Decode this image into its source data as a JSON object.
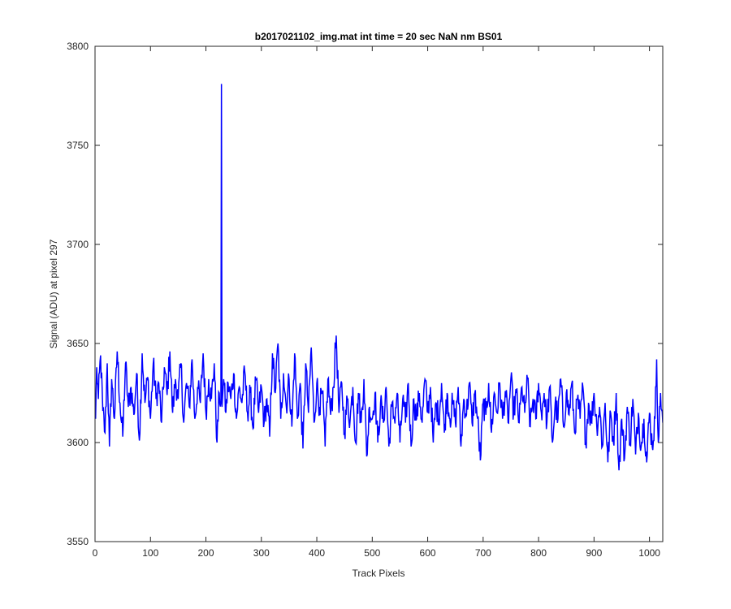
{
  "chart_data": {
    "type": "line",
    "title": "b2017021102_img.mat int time = 20 sec  NaN nm BS01",
    "xlabel": "Track Pixels",
    "ylabel": "Signal (ADU) at pixel 297",
    "xlim": [
      0,
      1024
    ],
    "ylim": [
      3550,
      3800
    ],
    "x_ticks": [
      0,
      100,
      200,
      300,
      400,
      500,
      600,
      700,
      800,
      900,
      1000
    ],
    "y_ticks": [
      3550,
      3600,
      3650,
      3700,
      3750,
      3800
    ],
    "x_tick_labels": [
      "0",
      "100",
      "200",
      "300",
      "400",
      "500",
      "600",
      "700",
      "800",
      "900",
      "1000"
    ],
    "y_tick_labels": [
      "3550",
      "3600",
      "3650",
      "3700",
      "3750",
      "3800"
    ],
    "grid": false,
    "series": [
      {
        "color": "#0000ff",
        "x_start": 1,
        "x_step": 1,
        "anchors": [
          [
            1,
            3612
          ],
          [
            3,
            3638
          ],
          [
            6,
            3622
          ],
          [
            10,
            3644
          ],
          [
            14,
            3616
          ],
          [
            18,
            3605
          ],
          [
            22,
            3640
          ],
          [
            26,
            3598
          ],
          [
            30,
            3632
          ],
          [
            35,
            3612
          ],
          [
            40,
            3646
          ],
          [
            45,
            3620
          ],
          [
            50,
            3603
          ],
          [
            55,
            3640
          ],
          [
            60,
            3618
          ],
          [
            65,
            3628
          ],
          [
            70,
            3614
          ],
          [
            75,
            3635
          ],
          [
            80,
            3601
          ],
          [
            85,
            3645
          ],
          [
            90,
            3620
          ],
          [
            95,
            3633
          ],
          [
            100,
            3612
          ],
          [
            105,
            3640
          ],
          [
            110,
            3622
          ],
          [
            115,
            3630
          ],
          [
            120,
            3610
          ],
          [
            125,
            3638
          ],
          [
            130,
            3624
          ],
          [
            135,
            3646
          ],
          [
            140,
            3615
          ],
          [
            145,
            3632
          ],
          [
            150,
            3622
          ],
          [
            155,
            3640
          ],
          [
            160,
            3610
          ],
          [
            165,
            3630
          ],
          [
            170,
            3618
          ],
          [
            175,
            3642
          ],
          [
            180,
            3612
          ],
          [
            185,
            3628
          ],
          [
            190,
            3620
          ],
          [
            195,
            3645
          ],
          [
            200,
            3615
          ],
          [
            205,
            3632
          ],
          [
            210,
            3622
          ],
          [
            215,
            3640
          ],
          [
            220,
            3600
          ],
          [
            224,
            3625
          ],
          [
            227,
            3620
          ],
          [
            228,
            3781
          ],
          [
            229,
            3618
          ],
          [
            232,
            3632
          ],
          [
            236,
            3615
          ],
          [
            240,
            3630
          ],
          [
            245,
            3622
          ],
          [
            250,
            3635
          ],
          [
            255,
            3612
          ],
          [
            260,
            3628
          ],
          [
            265,
            3620
          ],
          [
            270,
            3636
          ],
          [
            275,
            3615
          ],
          [
            280,
            3625
          ],
          [
            285,
            3607
          ],
          [
            290,
            3632
          ],
          [
            295,
            3615
          ],
          [
            300,
            3628
          ],
          [
            305,
            3610
          ],
          [
            310,
            3622
          ],
          [
            315,
            3603
          ],
          [
            320,
            3645
          ],
          [
            325,
            3625
          ],
          [
            330,
            3650
          ],
          [
            335,
            3612
          ],
          [
            340,
            3635
          ],
          [
            345,
            3618
          ],
          [
            350,
            3632
          ],
          [
            355,
            3608
          ],
          [
            360,
            3645
          ],
          [
            365,
            3612
          ],
          [
            370,
            3630
          ],
          [
            375,
            3597
          ],
          [
            380,
            3640
          ],
          [
            385,
            3615
          ],
          [
            390,
            3648
          ],
          [
            395,
            3610
          ],
          [
            400,
            3630
          ],
          [
            405,
            3618
          ],
          [
            410,
            3625
          ],
          [
            415,
            3598
          ],
          [
            420,
            3632
          ],
          [
            425,
            3614
          ],
          [
            430,
            3628
          ],
          [
            435,
            3654
          ],
          [
            440,
            3615
          ],
          [
            445,
            3630
          ],
          [
            450,
            3605
          ],
          [
            455,
            3622
          ],
          [
            460,
            3611
          ],
          [
            465,
            3628
          ],
          [
            470,
            3600
          ],
          [
            475,
            3625
          ],
          [
            480,
            3610
          ],
          [
            485,
            3632
          ],
          [
            490,
            3593
          ],
          [
            495,
            3618
          ],
          [
            500,
            3612
          ],
          [
            505,
            3625
          ],
          [
            510,
            3600
          ],
          [
            515,
            3620
          ],
          [
            520,
            3610
          ],
          [
            525,
            3628
          ],
          [
            530,
            3598
          ],
          [
            535,
            3618
          ],
          [
            540,
            3612
          ],
          [
            545,
            3625
          ],
          [
            550,
            3600
          ],
          [
            555,
            3622
          ],
          [
            560,
            3610
          ],
          [
            565,
            3630
          ],
          [
            570,
            3598
          ],
          [
            575,
            3622
          ],
          [
            580,
            3612
          ],
          [
            585,
            3625
          ],
          [
            590,
            3610
          ],
          [
            595,
            3632
          ],
          [
            600,
            3615
          ],
          [
            605,
            3628
          ],
          [
            610,
            3600
          ],
          [
            615,
            3620
          ],
          [
            620,
            3612
          ],
          [
            625,
            3630
          ],
          [
            630,
            3605
          ],
          [
            635,
            3625
          ],
          [
            640,
            3612
          ],
          [
            645,
            3620
          ],
          [
            650,
            3610
          ],
          [
            655,
            3628
          ],
          [
            660,
            3598
          ],
          [
            665,
            3622
          ],
          [
            670,
            3614
          ],
          [
            675,
            3630
          ],
          [
            680,
            3610
          ],
          [
            685,
            3625
          ],
          [
            690,
            3612
          ],
          [
            695,
            3591
          ],
          [
            700,
            3620
          ],
          [
            705,
            3614
          ],
          [
            710,
            3630
          ],
          [
            715,
            3605
          ],
          [
            720,
            3625
          ],
          [
            725,
            3615
          ],
          [
            730,
            3630
          ],
          [
            735,
            3612
          ],
          [
            740,
            3626
          ],
          [
            745,
            3610
          ],
          [
            750,
            3632
          ],
          [
            755,
            3615
          ],
          [
            760,
            3625
          ],
          [
            765,
            3610
          ],
          [
            770,
            3628
          ],
          [
            775,
            3615
          ],
          [
            780,
            3632
          ],
          [
            785,
            3608
          ],
          [
            790,
            3622
          ],
          [
            795,
            3612
          ],
          [
            800,
            3630
          ],
          [
            805,
            3615
          ],
          [
            810,
            3625
          ],
          [
            815,
            3610
          ],
          [
            820,
            3628
          ],
          [
            825,
            3600
          ],
          [
            830,
            3620
          ],
          [
            835,
            3612
          ],
          [
            840,
            3632
          ],
          [
            845,
            3608
          ],
          [
            850,
            3625
          ],
          [
            855,
            3614
          ],
          [
            860,
            3630
          ],
          [
            865,
            3605
          ],
          [
            870,
            3622
          ],
          [
            875,
            3612
          ],
          [
            880,
            3628
          ],
          [
            885,
            3600
          ],
          [
            890,
            3620
          ],
          [
            895,
            3610
          ],
          [
            900,
            3625
          ],
          [
            905,
            3608
          ],
          [
            910,
            3618
          ],
          [
            915,
            3598
          ],
          [
            920,
            3620
          ],
          [
            925,
            3590
          ],
          [
            930,
            3615
          ],
          [
            935,
            3600
          ],
          [
            940,
            3625
          ],
          [
            945,
            3586
          ],
          [
            950,
            3612
          ],
          [
            955,
            3592
          ],
          [
            960,
            3618
          ],
          [
            965,
            3600
          ],
          [
            970,
            3622
          ],
          [
            975,
            3594
          ],
          [
            980,
            3615
          ],
          [
            985,
            3598
          ],
          [
            990,
            3612
          ],
          [
            995,
            3590
          ],
          [
            1000,
            3615
          ],
          [
            1005,
            3598
          ],
          [
            1010,
            3612
          ],
          [
            1013,
            3642
          ],
          [
            1016,
            3600
          ],
          [
            1020,
            3625
          ],
          [
            1024,
            3610
          ]
        ]
      }
    ]
  }
}
